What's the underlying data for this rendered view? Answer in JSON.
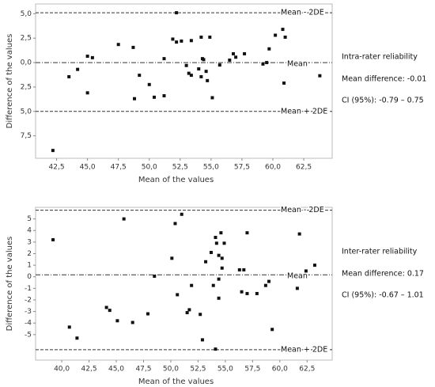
{
  "chart_data": [
    {
      "type": "scatter",
      "y_label": "Difference of the values",
      "x_label": "Mean of the values",
      "xlim": [
        40.8,
        64.8
      ],
      "ylim": [
        -9.8,
        6
      ],
      "xticks": [
        {
          "value": 42.5,
          "label": "42,5"
        },
        {
          "value": 45,
          "label": "45,0"
        },
        {
          "value": 47.5,
          "label": "47,5"
        },
        {
          "value": 50,
          "label": "50,0"
        },
        {
          "value": 52.5,
          "label": "52,5"
        },
        {
          "value": 55,
          "label": "55,0"
        },
        {
          "value": 57.5,
          "label": "57,5"
        },
        {
          "value": 60,
          "label": "60,0"
        },
        {
          "value": 62.5,
          "label": "62,5"
        }
      ],
      "yticks": [
        {
          "value": 5,
          "label": "5,0"
        },
        {
          "value": 2.5,
          "label": "2,5"
        },
        {
          "value": 0,
          "label": "0,0"
        },
        {
          "value": -2.5,
          "label": "2,5"
        },
        {
          "value": -5,
          "label": "5,0"
        },
        {
          "value": -7.5,
          "label": "7,5"
        }
      ],
      "reference_lines": [
        {
          "value": 5.1,
          "label": "Mean - 2DE",
          "style": "dashed"
        },
        {
          "value": -0.01,
          "label": "Mean",
          "style": "dashdot"
        },
        {
          "value": -5.0,
          "label": "Mean + 2DE",
          "style": "dashed"
        }
      ],
      "annotations": [
        "Intra-rater reliability",
        "Mean difference: -0.01",
        "CI (95%): -0.79 – 0.75"
      ],
      "series": [
        {
          "color": "#111111",
          "x": [
            42.2,
            43.5,
            44.2,
            45.0,
            45.4,
            45.0,
            47.5,
            48.7,
            48.8,
            49.2,
            50.0,
            50.4,
            51.2,
            51.2,
            51.9,
            52.2,
            52.6,
            52.2,
            53.0,
            53.2,
            53.4,
            53.4,
            54.0,
            54.2,
            54.2,
            54.3,
            54.4,
            54.6,
            54.7,
            54.9,
            55.1,
            55.7,
            56.5,
            56.8,
            57.0,
            57.7,
            59.2,
            59.5,
            59.7,
            60.2,
            60.8,
            61.0,
            60.9,
            63.8
          ],
          "values": [
            -9.0,
            -1.45,
            -0.7,
            0.65,
            0.5,
            -3.1,
            1.85,
            1.55,
            -3.7,
            -1.3,
            -2.25,
            -3.55,
            -3.4,
            0.4,
            2.4,
            2.1,
            2.2,
            5.1,
            -0.3,
            -1.1,
            2.25,
            -1.3,
            -0.65,
            -1.45,
            2.6,
            0.4,
            0.3,
            -0.9,
            -1.85,
            2.6,
            -3.6,
            -0.25,
            0.25,
            0.9,
            0.55,
            0.9,
            -0.15,
            0,
            1.4,
            2.8,
            3.4,
            2.6,
            -2.1,
            -1.35
          ]
        }
      ]
    },
    {
      "type": "scatter",
      "y_label": "Difference of the values",
      "x_label": "Mean of the values",
      "xlim": [
        37.6,
        64.8
      ],
      "ylim": [
        -7.2,
        6
      ],
      "xticks": [
        {
          "value": 40,
          "label": "40,0"
        },
        {
          "value": 42.5,
          "label": "42,5"
        },
        {
          "value": 45,
          "label": "45,0"
        },
        {
          "value": 47.5,
          "label": "47,5"
        },
        {
          "value": 50,
          "label": "50,0"
        },
        {
          "value": 52.5,
          "label": "52,5"
        },
        {
          "value": 55,
          "label": "55,0"
        },
        {
          "value": 57.5,
          "label": "57,5"
        },
        {
          "value": 60,
          "label": "60,0"
        },
        {
          "value": 62.5,
          "label": "62,5"
        }
      ],
      "yticks": [
        5,
        4,
        3,
        2,
        1,
        0,
        -1,
        -2,
        -3,
        -4,
        -5
      ],
      "reference_lines": [
        {
          "value": 5.75,
          "label": "Mean - 2DE",
          "style": "dashed"
        },
        {
          "value": 0.17,
          "label": "Mean",
          "style": "dashdot"
        },
        {
          "value": -6.3,
          "label": "Mean + 2DE",
          "style": "dashed"
        }
      ],
      "annotations": [
        "Inter-rater reliability",
        "Mean difference: 0.17",
        "CI (95%): -0.67 – 1.01"
      ],
      "series": [
        {
          "color": "#111111",
          "x": [
            39.2,
            40.7,
            41.4,
            44.1,
            44.4,
            45.1,
            45.7,
            46.5,
            47.9,
            48.5,
            50.1,
            50.4,
            50.6,
            51.0,
            51.5,
            51.7,
            51.9,
            52.7,
            52.9,
            53.2,
            53.7,
            53.9,
            54.1,
            54.1,
            54.2,
            54.4,
            54.4,
            54.4,
            54.6,
            54.7,
            54.7,
            54.9,
            56.3,
            56.5,
            56.7,
            57.0,
            57.0,
            57.9,
            58.7,
            59.0,
            59.3,
            61.6,
            61.8,
            62.4,
            63.2
          ],
          "values": [
            3.2,
            -4.35,
            -5.3,
            -2.65,
            -2.9,
            -3.8,
            5.0,
            -3.95,
            -3.2,
            0.05,
            1.6,
            4.6,
            -1.55,
            5.4,
            -3.1,
            -2.85,
            -0.75,
            -3.25,
            -5.45,
            1.3,
            2.1,
            -0.75,
            3.4,
            -6.25,
            2.9,
            -1.85,
            1.85,
            -0.2,
            3.8,
            0.75,
            1.6,
            2.9,
            0.6,
            -1.3,
            0.6,
            3.8,
            -1.45,
            -1.45,
            -0.75,
            -0.4,
            -4.55,
            -1.0,
            3.7,
            0.5,
            1.0
          ]
        }
      ]
    }
  ]
}
